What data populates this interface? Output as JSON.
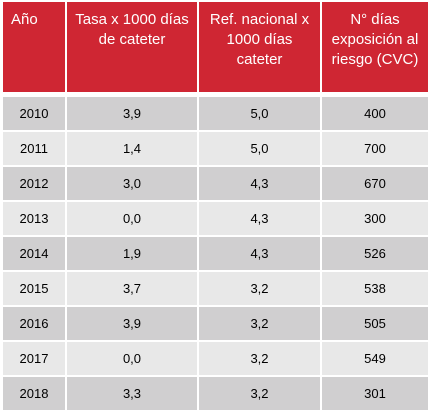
{
  "table": {
    "headers": [
      "Año",
      "Tasa x 1000 días de cateter",
      "Ref. nacional x 1000 días cateter",
      "N° días exposición al riesgo (CVC)"
    ],
    "rows": [
      {
        "year": "2010",
        "tasa": "3,9",
        "ref": "5,0",
        "dias": "400"
      },
      {
        "year": "2011",
        "tasa": "1,4",
        "ref": "5,0",
        "dias": "700"
      },
      {
        "year": "2012",
        "tasa": "3,0",
        "ref": "4,3",
        "dias": "670"
      },
      {
        "year": "2013",
        "tasa": "0,0",
        "ref": "4,3",
        "dias": "300"
      },
      {
        "year": "2014",
        "tasa": "1,9",
        "ref": "4,3",
        "dias": "526"
      },
      {
        "year": "2015",
        "tasa": "3,7",
        "ref": "3,2",
        "dias": "538"
      },
      {
        "year": "2016",
        "tasa": "3,9",
        "ref": "3,2",
        "dias": "505"
      },
      {
        "year": "2017",
        "tasa": "0,0",
        "ref": "3,2",
        "dias": "549"
      },
      {
        "year": "2018",
        "tasa": "3,3",
        "ref": "3,2",
        "dias": "301"
      }
    ]
  },
  "colors": {
    "header_bg": "#cf2633",
    "header_text": "#ffffff",
    "row_dark": "#d0cfd0",
    "row_light": "#e8e8e8"
  }
}
